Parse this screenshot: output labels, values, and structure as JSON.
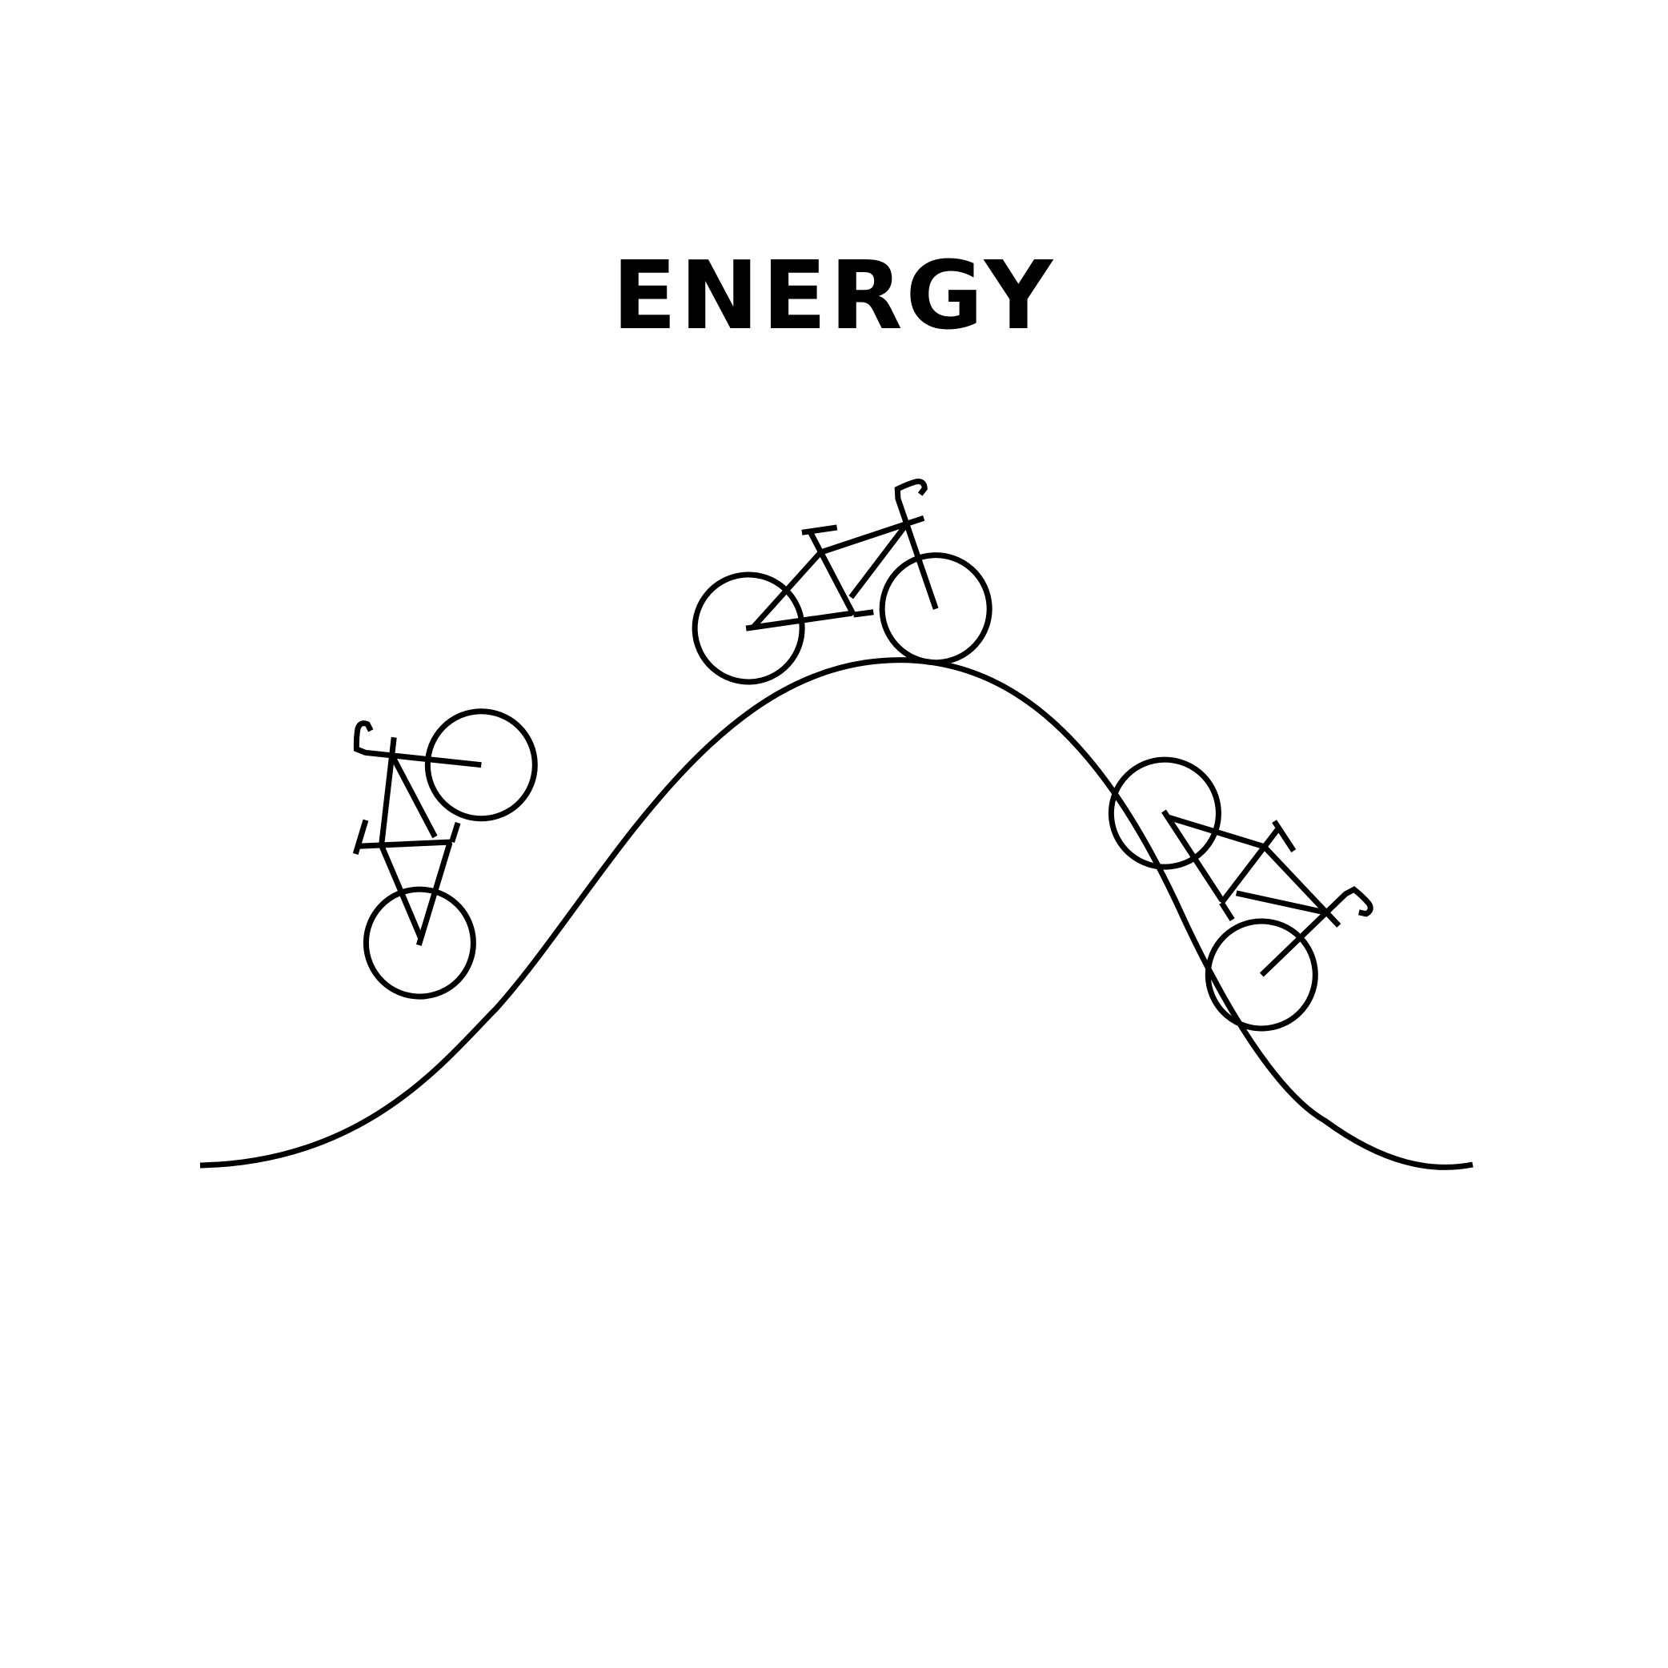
{
  "title": "ENERGY",
  "colors": {
    "background": "#ffffff",
    "ink": "#000000"
  },
  "illustration": {
    "subject": "bicycles",
    "bicycle_count": 3,
    "icons": [
      "hill-curve-icon",
      "bicycle-icon"
    ]
  }
}
